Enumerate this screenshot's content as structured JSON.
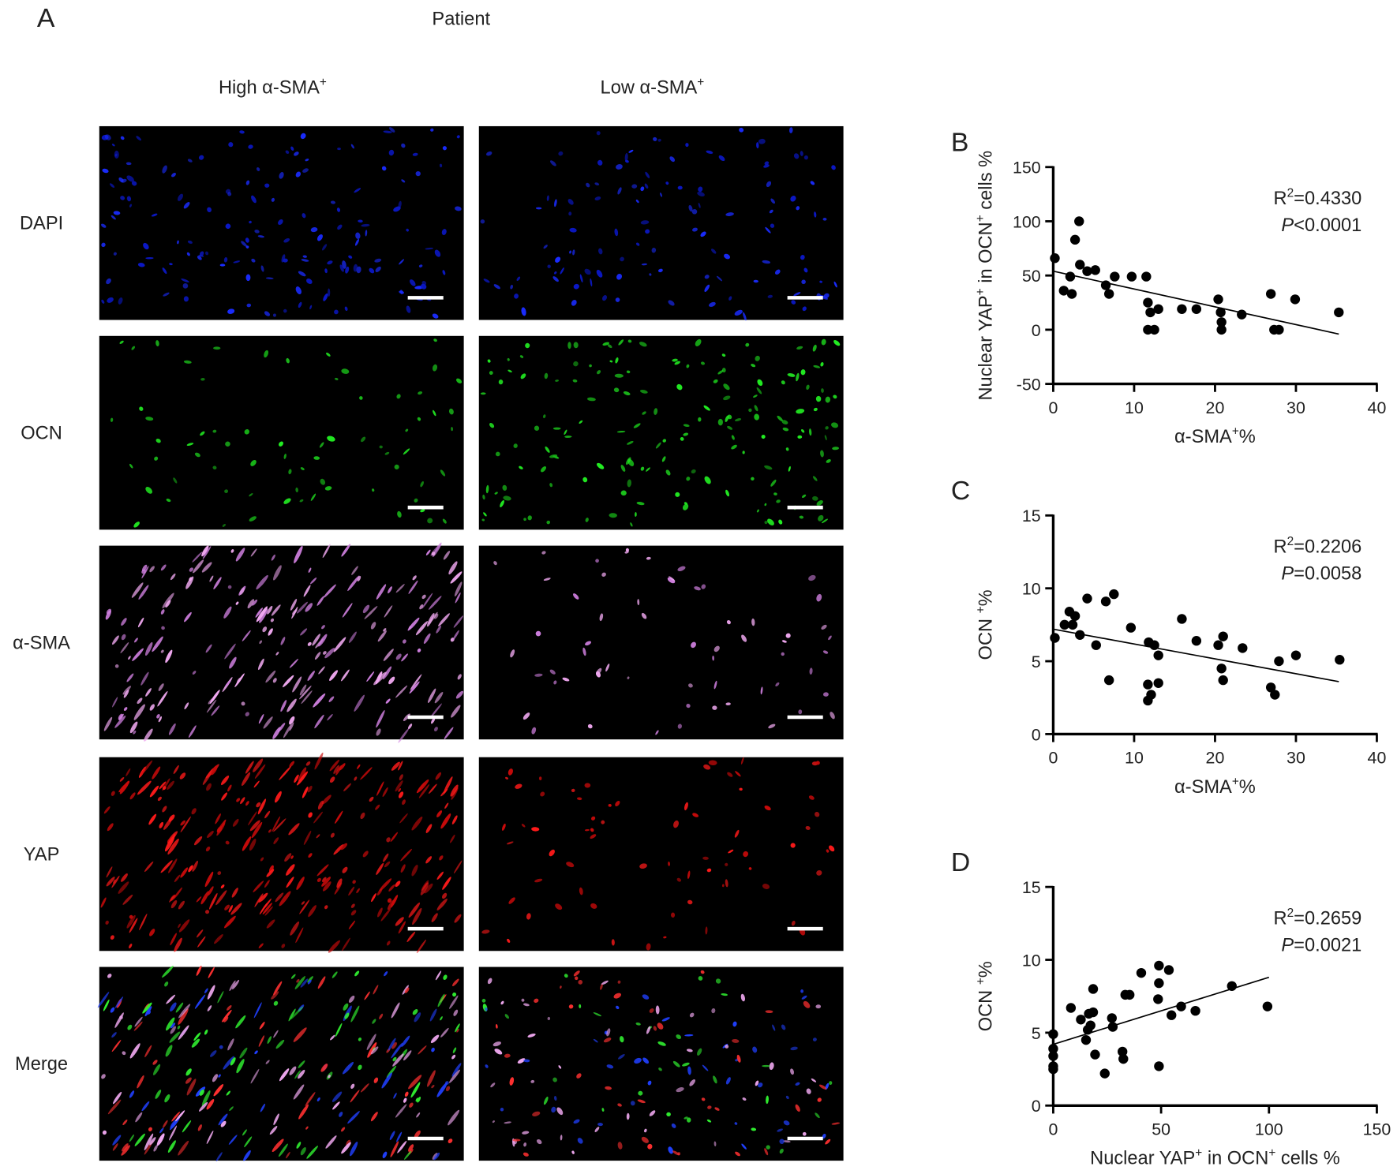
{
  "panel_a": {
    "label": "A",
    "title": "Patient",
    "columns": [
      [
        "High α-SMA",
        "+"
      ],
      [
        "Low α-SMA",
        "+"
      ]
    ],
    "rows": [
      "DAPI",
      "OCN",
      "α-SMA",
      "YAP",
      "Merge"
    ]
  },
  "chart_data": [
    {
      "type": "scatter",
      "panel_label": "B",
      "xlabel": [
        "α-SMA",
        "+",
        "%"
      ],
      "ylabel": [
        "Nuclear YAP",
        "+",
        " in OCN",
        "+",
        " cells %"
      ],
      "annotation": {
        "r2": [
          "R",
          "2",
          "=0.4330"
        ],
        "p": [
          "P",
          "<0.0001"
        ]
      },
      "color": "#000000",
      "x": [
        0.2,
        1.3,
        2.1,
        2.3,
        2.7,
        3.2,
        3.3,
        4.2,
        5.2,
        6.5,
        6.9,
        7.6,
        9.7,
        11.5,
        11.7,
        11.7,
        12,
        12.5,
        13,
        15.9,
        17.7,
        20.4,
        20.7,
        20.8,
        20.8,
        23.3,
        26.9,
        27.3,
        27.9,
        29.9,
        35.3
      ],
      "values": [
        66,
        36,
        49,
        33,
        83,
        100,
        60,
        54,
        55,
        41,
        33,
        49,
        49,
        49,
        25,
        0,
        16,
        0,
        19,
        19,
        19,
        28,
        16,
        0,
        7,
        14,
        33,
        0,
        0,
        28,
        16
      ],
      "fit": {
        "x": [
          0,
          35.3
        ],
        "values": [
          54,
          -4
        ]
      },
      "xlim": [
        0,
        40
      ],
      "ylim": [
        -50,
        150
      ],
      "xticks": [
        0,
        10,
        20,
        30,
        40
      ],
      "yticks": [
        -50,
        0,
        50,
        100,
        150
      ]
    },
    {
      "type": "scatter",
      "panel_label": "C",
      "xlabel": [
        "α-SMA",
        "+",
        "%"
      ],
      "ylabel": [
        "OCN ",
        "+",
        "%"
      ],
      "annotation": {
        "r2": [
          "R",
          "2",
          "=0.2206"
        ],
        "p": [
          "P",
          "=0.0058"
        ]
      },
      "color": "#000000",
      "x": [
        0.2,
        1.4,
        2,
        2.4,
        2.7,
        3.3,
        4.2,
        5.3,
        6.5,
        6.9,
        7.5,
        9.6,
        11.8,
        11.7,
        11.7,
        12.1,
        12.5,
        13,
        13,
        15.9,
        17.7,
        20.4,
        21,
        20.8,
        21,
        23.4,
        26.9,
        27.4,
        27.9,
        30,
        35.4
      ],
      "values": [
        6.6,
        7.5,
        8.4,
        7.5,
        8.1,
        6.8,
        9.3,
        6.1,
        9.1,
        3.7,
        9.6,
        7.3,
        6.3,
        3.4,
        2.3,
        2.7,
        6.1,
        5.4,
        3.5,
        7.9,
        6.4,
        6.1,
        6.7,
        4.5,
        3.7,
        5.9,
        3.2,
        2.7,
        5,
        5.4,
        5.1
      ],
      "fit": {
        "x": [
          0,
          35.3
        ],
        "values": [
          7.2,
          3.6
        ]
      },
      "xlim": [
        0,
        40
      ],
      "ylim": [
        0,
        15
      ],
      "xticks": [
        0,
        10,
        20,
        30,
        40
      ],
      "yticks": [
        0,
        5,
        10,
        15
      ]
    },
    {
      "type": "scatter",
      "panel_label": "D",
      "xlabel": [
        "Nuclear YAP",
        "+",
        " in OCN",
        "+",
        " cells %"
      ],
      "ylabel": [
        "OCN ",
        "+",
        "%"
      ],
      "annotation": {
        "r2": [
          "R",
          "2",
          "=0.2659"
        ],
        "p": [
          "P",
          "=0.0021"
        ]
      },
      "color": "#000000",
      "x": [
        0,
        0,
        0,
        0,
        0,
        8.2,
        12.8,
        15.2,
        16,
        16.5,
        17.3,
        18.5,
        18.5,
        19.4,
        23.9,
        27.2,
        27.6,
        32.1,
        32.5,
        33.4,
        35.4,
        40.8,
        49,
        49,
        48.6,
        49,
        53.6,
        54.8,
        59.3,
        65.9,
        82.8,
        99.3
      ],
      "values": [
        4.9,
        3.9,
        3.4,
        2.7,
        2.5,
        6.7,
        5.9,
        4.5,
        5.2,
        6.3,
        5.5,
        8,
        6.4,
        3.5,
        2.2,
        6,
        5.4,
        3.7,
        3.2,
        7.6,
        7.6,
        9.1,
        9.6,
        8.4,
        7.3,
        2.7,
        9.3,
        6.2,
        6.8,
        6.5,
        8.2,
        6.8
      ],
      "fit": {
        "x": [
          0,
          100
        ],
        "values": [
          4.2,
          8.8
        ]
      },
      "xlim": [
        0,
        150
      ],
      "ylim": [
        0,
        15
      ],
      "xticks": [
        0,
        50,
        100,
        150
      ],
      "yticks": [
        0,
        5,
        10,
        15
      ]
    }
  ]
}
